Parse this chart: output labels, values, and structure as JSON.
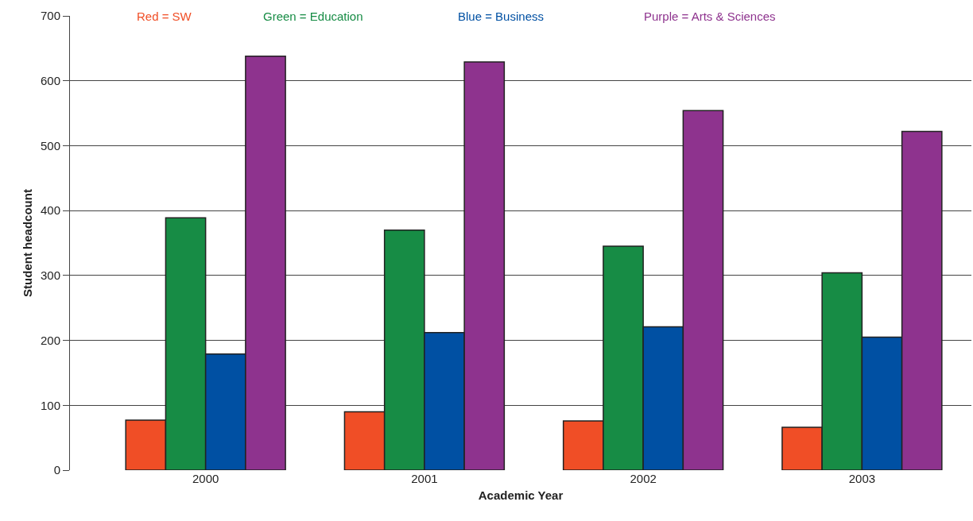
{
  "chart_data": {
    "type": "bar",
    "xlabel": "Academic Year",
    "ylabel": "Student headcount",
    "categories": [
      "2000",
      "2001",
      "2002",
      "2003"
    ],
    "series": [
      {
        "name": "Red = SW",
        "color": "#f04e26",
        "values": [
          77,
          90,
          76,
          66
        ]
      },
      {
        "name": "Green = Education",
        "color": "#178c45",
        "values": [
          389,
          370,
          345,
          304
        ]
      },
      {
        "name": "Blue = Business",
        "color": "#0050a3",
        "values": [
          179,
          212,
          221,
          205
        ]
      },
      {
        "name": "Purple = Arts & Sciences",
        "color": "#8e338e",
        "values": [
          638,
          629,
          554,
          522
        ]
      }
    ],
    "ylim": [
      0,
      700
    ],
    "yticks": [
      0,
      100,
      200,
      300,
      400,
      500,
      600,
      700
    ],
    "grid": "y",
    "legend": "top"
  }
}
